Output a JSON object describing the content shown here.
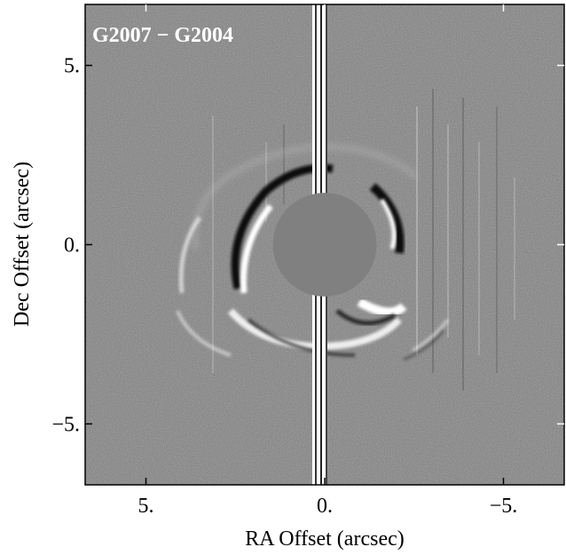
{
  "chart_data": {
    "type": "heatmap",
    "title": "",
    "panel_label": "G2007 − G2004",
    "xlabel": "RA Offset (arcsec)",
    "ylabel": "Dec Offset (arcsec)",
    "xlim": [
      6.7,
      -6.7
    ],
    "ylim": [
      -6.7,
      6.7
    ],
    "x_ticks": [
      {
        "value": 5,
        "label": "5."
      },
      {
        "value": 0,
        "label": "0."
      },
      {
        "value": -5,
        "label": "−5."
      }
    ],
    "y_ticks": [
      {
        "value": 5,
        "label": "5."
      },
      {
        "value": 0,
        "label": "0."
      },
      {
        "value": -5,
        "label": "−5."
      }
    ],
    "colormap": "grayscale",
    "occulting_mask": {
      "center": [
        0,
        0
      ],
      "radius_arcsec": 1.45,
      "color": "#808080"
    },
    "background_color": "#7f7f7f"
  }
}
